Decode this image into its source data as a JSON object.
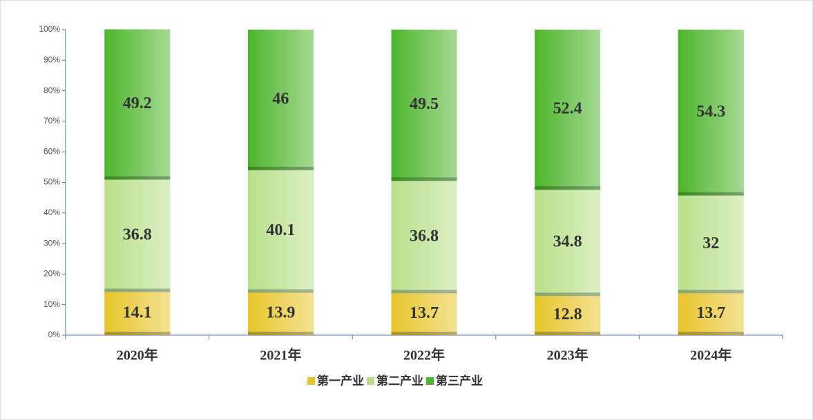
{
  "chart_data": {
    "type": "stacked_bar_percent",
    "categories": [
      "2020年",
      "2021年",
      "2022年",
      "2023年",
      "2024年"
    ],
    "series": [
      {
        "name": "第一产业",
        "color": "#e8c52a",
        "values": [
          14.1,
          13.9,
          13.7,
          12.8,
          13.7
        ]
      },
      {
        "name": "第二产业",
        "color": "#b8e08a",
        "values": [
          36.8,
          40.1,
          36.8,
          34.8,
          32.0
        ]
      },
      {
        "name": "第三产业",
        "color": "#4cb52a",
        "values": [
          49.2,
          46.0,
          49.5,
          52.4,
          54.3
        ]
      }
    ],
    "ylim": [
      0,
      100
    ],
    "yticks": [
      {
        "value": 0,
        "label": "0%"
      },
      {
        "value": 10,
        "label": "10%"
      },
      {
        "value": 20,
        "label": "20%"
      },
      {
        "value": 30,
        "label": "30%"
      },
      {
        "value": 40,
        "label": "40%"
      },
      {
        "value": 50,
        "label": "50%"
      },
      {
        "value": 60,
        "label": "60%"
      },
      {
        "value": 70,
        "label": "70%"
      },
      {
        "value": 80,
        "label": "80%"
      },
      {
        "value": 90,
        "label": "90%"
      },
      {
        "value": 100,
        "label": "100%"
      }
    ],
    "legend": "bottom"
  }
}
